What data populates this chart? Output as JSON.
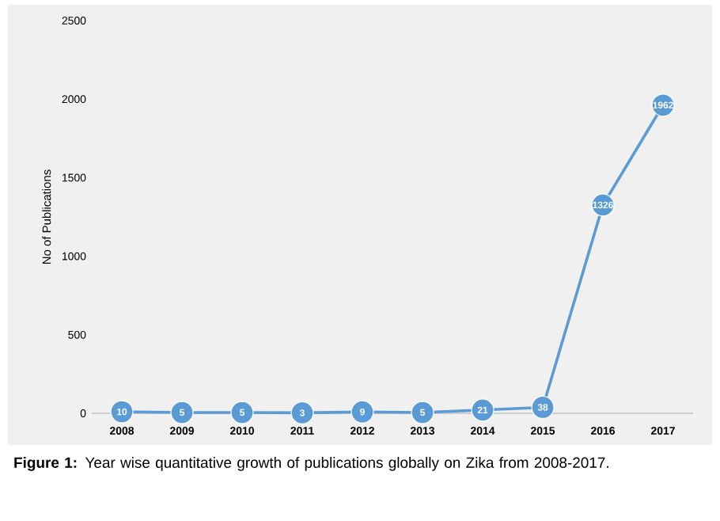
{
  "chart_data": {
    "type": "line",
    "ylabel": "No of Publications",
    "categories": [
      "2008",
      "2009",
      "2010",
      "2011",
      "2012",
      "2013",
      "2014",
      "2015",
      "2016",
      "2017"
    ],
    "values": [
      10,
      5,
      5,
      3,
      9,
      5,
      21,
      38,
      1326,
      1962
    ],
    "color": "#5b9bd5",
    "marker": "circle",
    "data_labels": true,
    "ylim": [
      0,
      2500
    ],
    "yticks": [
      0,
      500,
      1000,
      1500,
      2000,
      2500
    ],
    "annotations": [
      "**Figure 1:** Year wise quantitative growth of publications globally on Zika from 2008-2017."
    ]
  }
}
